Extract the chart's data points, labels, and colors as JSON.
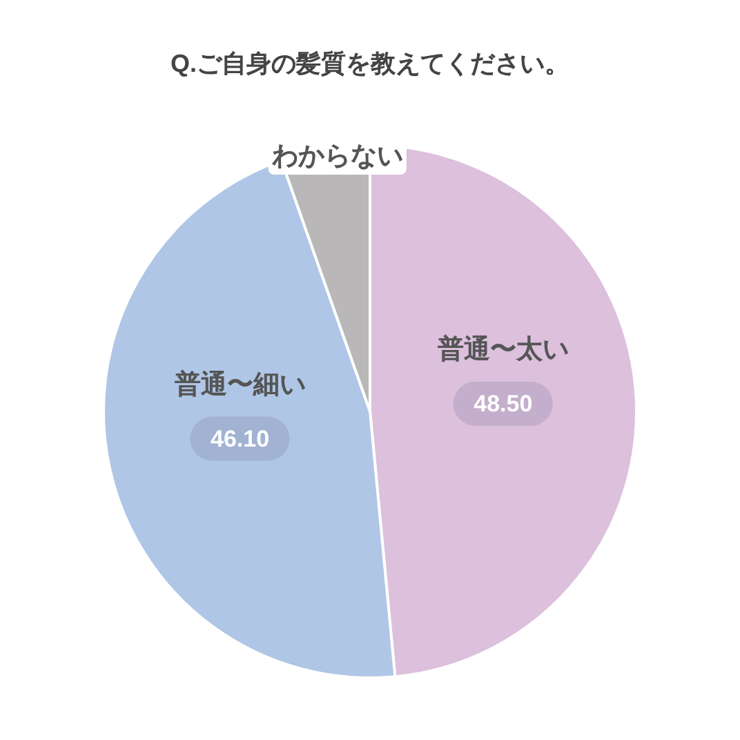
{
  "chart_data": {
    "type": "pie",
    "title": "Q.ご自身の髪質を教えてください。",
    "categories": [
      "普通〜太い",
      "普通〜細い",
      "わからない"
    ],
    "values": [
      48.5,
      46.1,
      5.4
    ],
    "colors": [
      "#dcc0dc",
      "#afc6e6",
      "#b9b7b8"
    ],
    "value_labels": [
      "48.50",
      "46.10",
      null
    ],
    "legend": false
  }
}
